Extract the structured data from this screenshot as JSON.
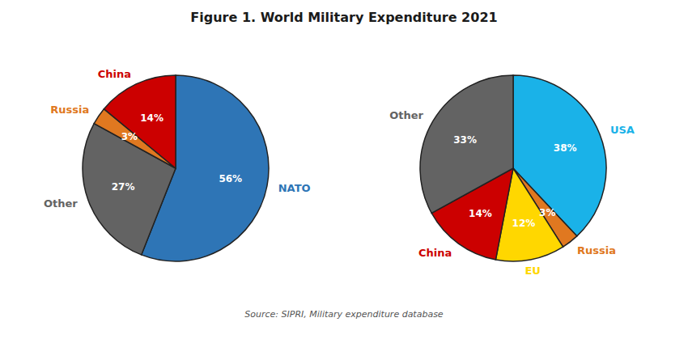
{
  "chart_data": [
    {
      "type": "pie",
      "title": "Figure 1. World Military Expenditure 2021",
      "annotations": [
        "Source: SIPRI, Military expenditure database"
      ],
      "categories": [
        "NATO",
        "Other",
        "Russia",
        "China"
      ],
      "values": [
        56,
        27,
        3,
        14
      ],
      "value_labels": [
        "56%",
        "27%",
        "3%",
        "14%"
      ],
      "colors": [
        "#2E75B6",
        "#636363",
        "#E07820",
        "#CC0000"
      ],
      "data_labels": true
    },
    {
      "type": "pie",
      "categories": [
        "USA",
        "Russia",
        "EU",
        "China",
        "Other"
      ],
      "values": [
        38,
        3,
        12,
        14,
        33
      ],
      "value_labels": [
        "38%",
        "3%",
        "12%",
        "14%",
        "33%"
      ],
      "colors": [
        "#1AB2E8",
        "#E07820",
        "#FFD700",
        "#CC0000",
        "#636363"
      ],
      "data_labels": true
    }
  ]
}
